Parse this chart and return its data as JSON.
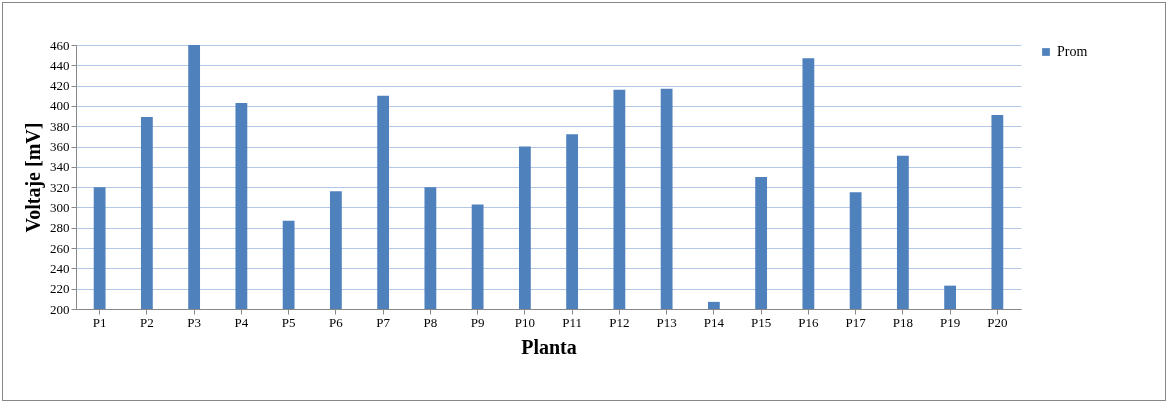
{
  "chart_data": {
    "type": "bar",
    "xlabel": "Planta",
    "ylabel": "Voltaje [mV]",
    "categories": [
      "P1",
      "P2",
      "P3",
      "P4",
      "P5",
      "P6",
      "P7",
      "P8",
      "P9",
      "P10",
      "P11",
      "P12",
      "P13",
      "P14",
      "P15",
      "P16",
      "P17",
      "P18",
      "P19",
      "P20"
    ],
    "series": [
      {
        "name": "Prom",
        "color": "#4f81bd",
        "values": [
          320,
          389,
          460,
          403,
          287,
          316,
          410,
          320,
          303,
          360,
          372,
          416,
          417,
          207,
          330,
          447,
          315,
          351,
          223,
          391
        ]
      }
    ],
    "ylim": [
      200,
      460
    ],
    "yticks": [
      200,
      220,
      240,
      260,
      280,
      300,
      320,
      340,
      360,
      380,
      400,
      420,
      440,
      460
    ],
    "grid": "y",
    "legend": "right"
  }
}
